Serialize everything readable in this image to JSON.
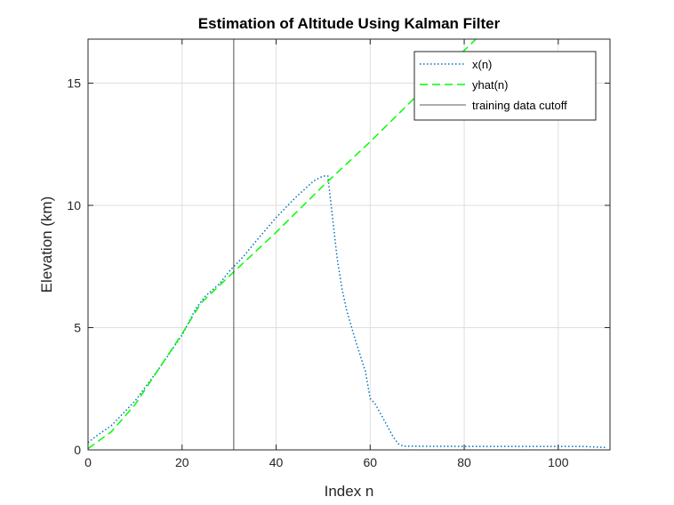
{
  "chart_data": {
    "type": "line",
    "title": "Estimation of Altitude Using Kalman Filter",
    "xlabel": "Index n",
    "ylabel": "Elevation (km)",
    "xlim": [
      0,
      111
    ],
    "ylim": [
      0,
      16.8
    ],
    "xticks": [
      0,
      20,
      40,
      60,
      80,
      100
    ],
    "yticks": [
      0,
      5,
      10,
      15
    ],
    "grid": true,
    "legend_location": "top-right",
    "series": [
      {
        "name": "x(n)",
        "color": "#0072BD",
        "style": "dotted",
        "x": [
          0,
          2,
          5,
          8,
          10,
          15,
          20,
          23,
          25,
          28,
          30,
          33,
          36,
          40,
          44,
          48,
          50,
          51,
          52,
          53,
          54,
          55,
          57,
          59,
          60,
          61,
          63,
          65,
          66,
          67,
          70,
          80,
          90,
          100,
          105,
          110
        ],
        "y": [
          0.3,
          0.6,
          1.0,
          1.6,
          2.0,
          3.3,
          4.7,
          5.8,
          6.3,
          6.8,
          7.3,
          7.9,
          8.6,
          9.5,
          10.3,
          11.0,
          11.2,
          11.2,
          9.5,
          7.8,
          6.6,
          5.7,
          4.4,
          3.2,
          2.1,
          1.9,
          1.2,
          0.5,
          0.25,
          0.15,
          0.15,
          0.14,
          0.14,
          0.14,
          0.14,
          0.1
        ]
      },
      {
        "name": "yhat(n)",
        "color": "#00FF00",
        "style": "dashed",
        "x": [
          0,
          5,
          10,
          15,
          20,
          24,
          30,
          40,
          50,
          60,
          70,
          82.5
        ],
        "y": [
          0.05,
          0.75,
          1.85,
          3.3,
          4.75,
          6.0,
          7.1,
          8.9,
          10.8,
          12.6,
          14.5,
          16.8
        ]
      },
      {
        "name": "training data cutoff",
        "color": "#262626",
        "style": "solid",
        "x": [
          31,
          31
        ],
        "y": [
          0,
          16.8
        ]
      }
    ]
  }
}
